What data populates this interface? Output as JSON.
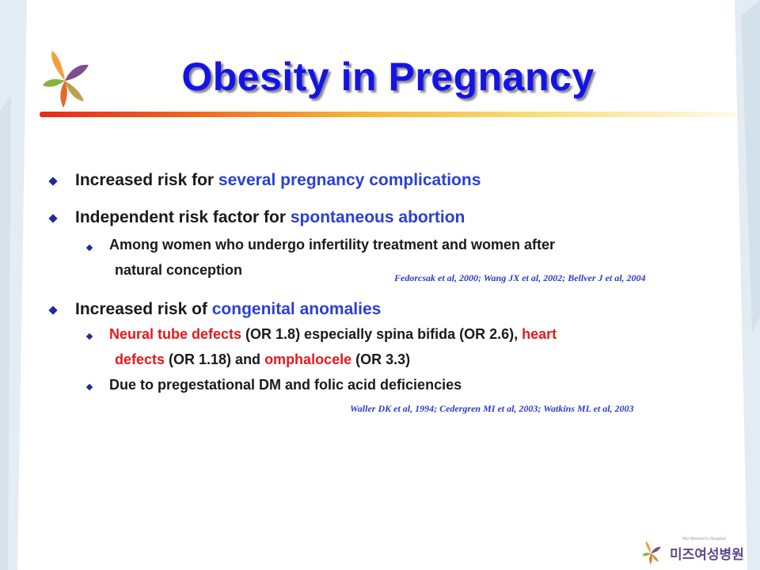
{
  "colors": {
    "title": "#1414e6",
    "bullet_text": "#1a1a1a",
    "highlight_blue": "#2a3fd6",
    "highlight_red": "#e8181c",
    "citation": "#2e3cc8",
    "bullet_marker": "#1e2c9e",
    "rule_start": "#e82a1c",
    "rule_end": "#f7e07c"
  },
  "slide": {
    "title": "Obesity in Pregnancy",
    "b1": {
      "normal": "Increased risk for ",
      "blue": "several pregnancy complications"
    },
    "b2": {
      "normal": "Independent risk factor for ",
      "blue": "spontaneous abortion"
    },
    "b2_sub1": {
      "line1": "Among women who undergo infertility treatment and women after",
      "line2": "natural conception"
    },
    "cite1": "Fedorcsak et al, 2000; Wang JX et al, 2002; Bellver J et al, 2004",
    "b3": {
      "normal": "Increased risk of ",
      "blue": "congenital anomalies"
    },
    "b3_sub1": {
      "red1": "Neural tube defects",
      "t1": " (OR 1.8) especially spina bifida (OR 2.6), ",
      "red2a": "heart",
      "red2b": "defects",
      "t2": " (OR 1.18) and ",
      "red3": "omphalocele",
      "t3": " (OR 3.3)"
    },
    "b3_sub2": "Due to pregestational DM and folic acid deficiencies",
    "cite2": "Waller DK et al, 1994; Cedergren MI et al, 2003; Watkins ML et al, 2003"
  },
  "brand": {
    "name": "미즈여성병원",
    "subtitle": "Miz Women's Hospital",
    "logo_icon": "butterfly-logo-icon"
  }
}
